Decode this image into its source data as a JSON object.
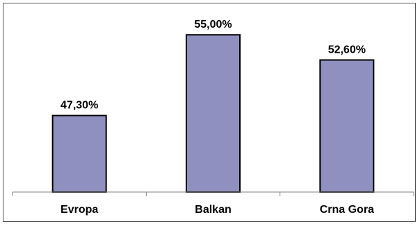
{
  "chart_data": {
    "type": "bar",
    "categories": [
      "Evropa",
      "Balkan",
      "Crna Gora"
    ],
    "values": [
      47.3,
      55.0,
      52.6
    ],
    "value_labels": [
      "47,30%",
      "55,00%",
      "52,60%"
    ],
    "ylim": [
      40,
      57
    ],
    "grid": false,
    "legend": "none",
    "colors": {
      "bar": "#9090c0",
      "bar_outline": "#000000",
      "axis": "#808080"
    }
  }
}
